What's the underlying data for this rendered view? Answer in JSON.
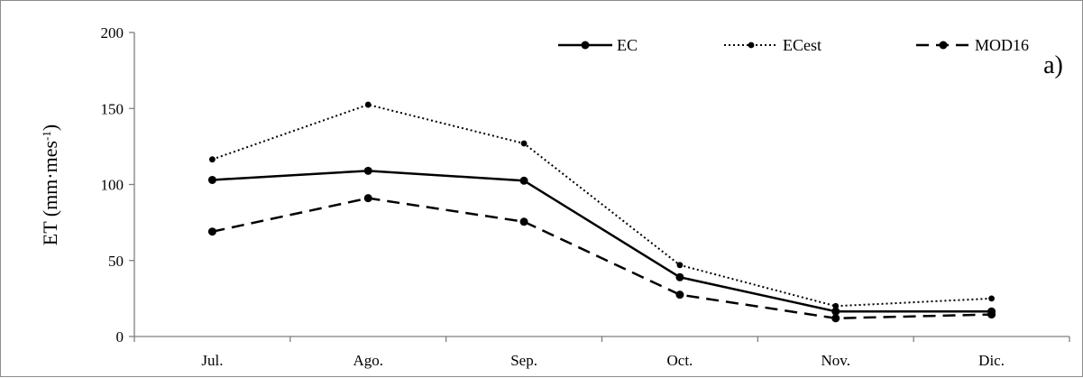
{
  "chart_data": {
    "type": "line",
    "categories": [
      "Jul.",
      "Ago.",
      "Sep.",
      "Oct.",
      "Nov.",
      "Dic."
    ],
    "ylabel": "ET (mm·mes",
    "ylabel_sup": "-1",
    "ylabel_close": ")",
    "ylim": [
      0,
      200
    ],
    "yticks": [
      0,
      50,
      100,
      150,
      200
    ],
    "grid": false,
    "legend_position": "top-right",
    "annotation": "a)",
    "series": [
      {
        "name": "EC",
        "style": "solid",
        "color": "#000000",
        "values": [
          103,
          109,
          102.5,
          39,
          16.5,
          16.5
        ]
      },
      {
        "name": "ECest",
        "style": "dotted",
        "color": "#000000",
        "values": [
          116.5,
          152.5,
          127,
          47,
          20,
          25
        ]
      },
      {
        "name": "MOD16",
        "style": "dashed",
        "color": "#000000",
        "values": [
          69,
          91,
          75.5,
          27.5,
          12,
          14.5
        ]
      }
    ]
  }
}
